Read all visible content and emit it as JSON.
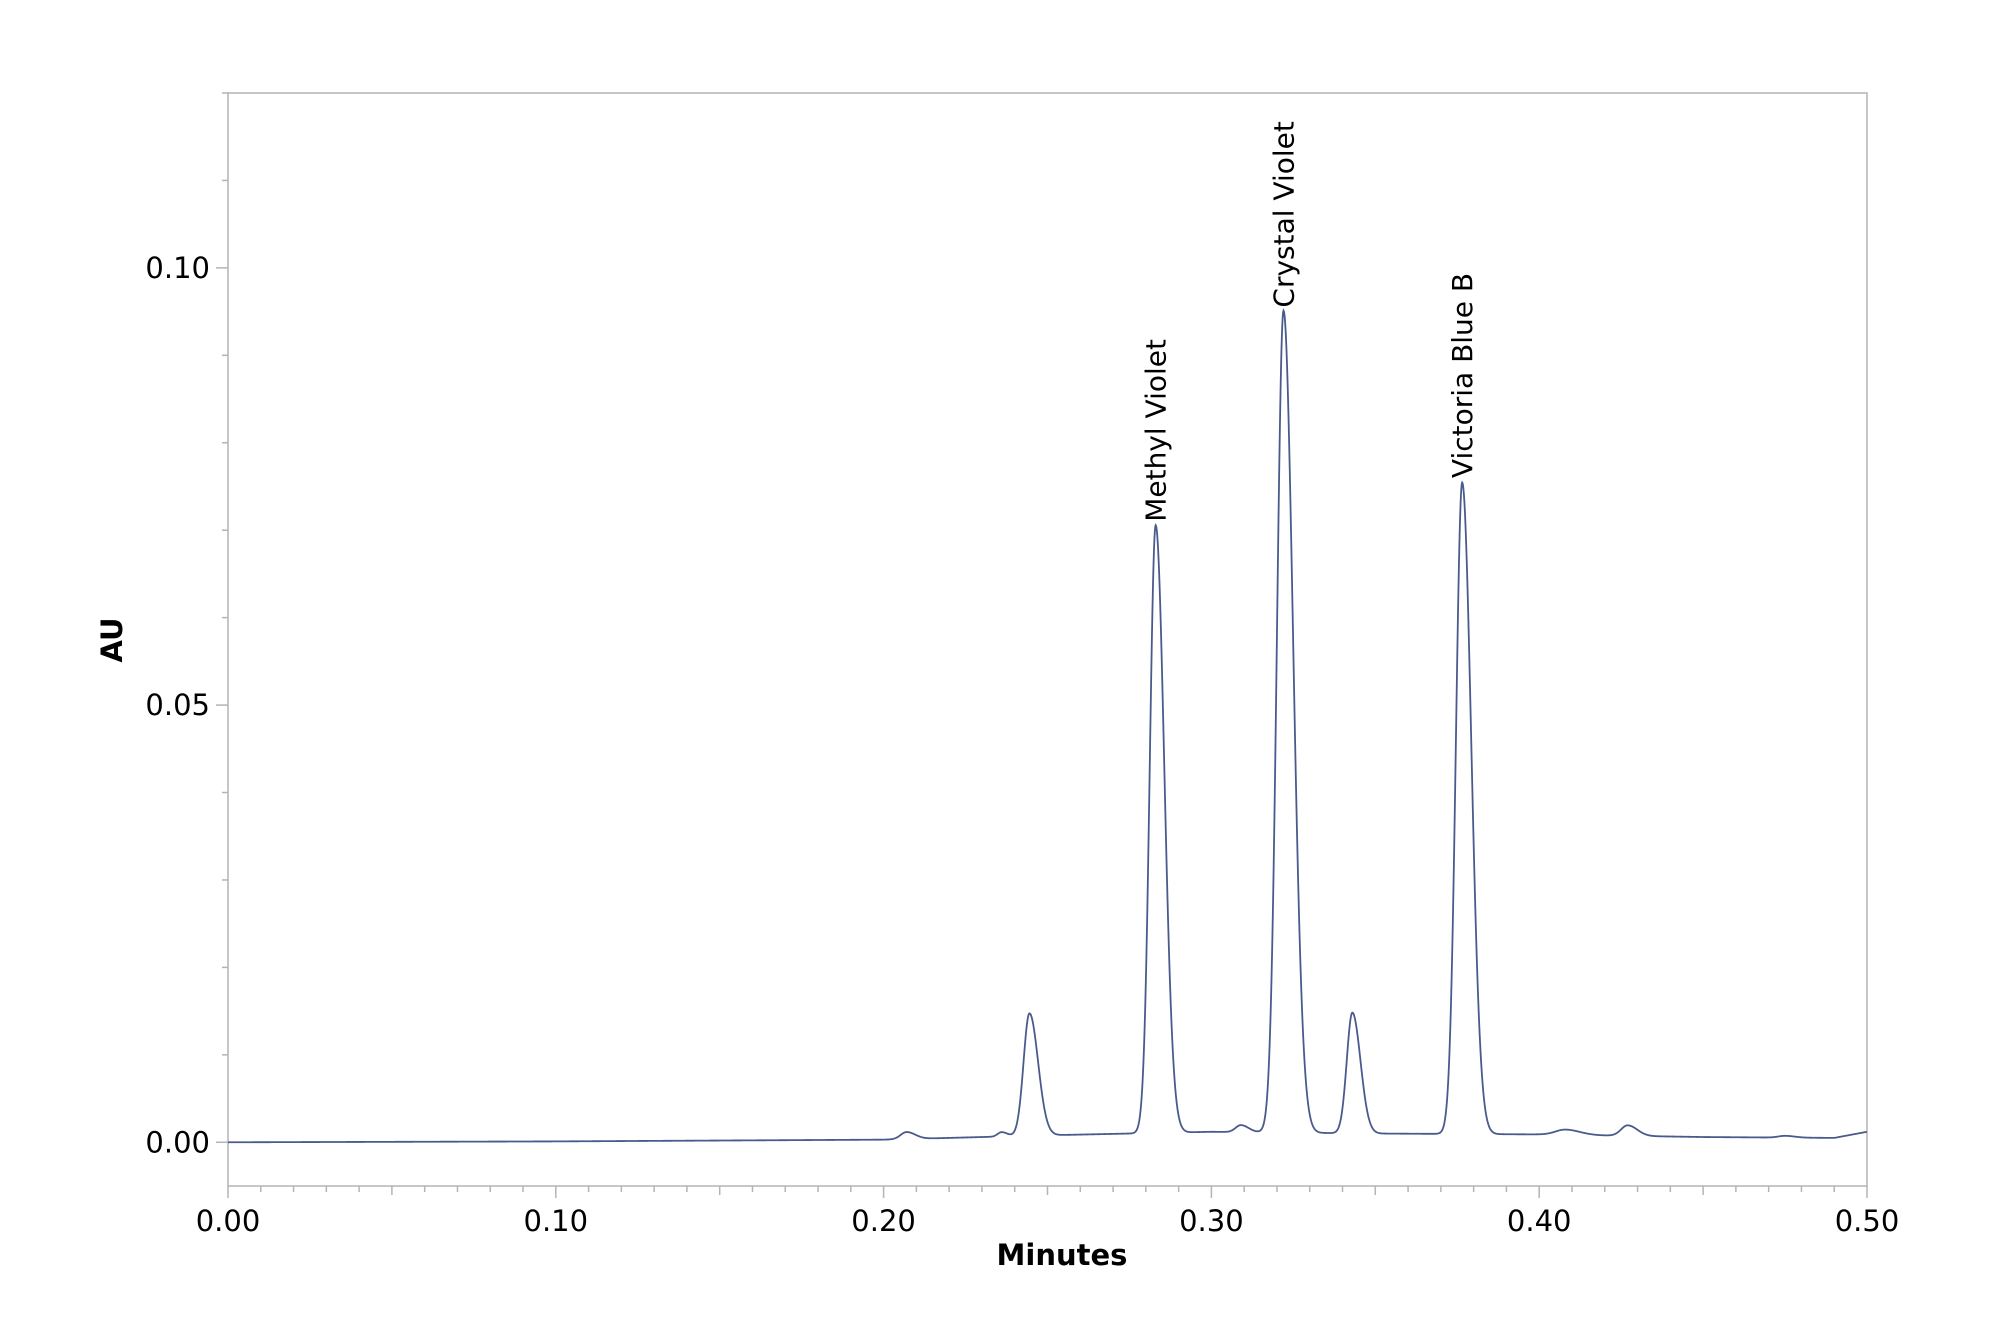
{
  "chart_data": {
    "type": "line",
    "title": "",
    "xlabel": "Minutes",
    "ylabel": "AU",
    "xlim": [
      0.0,
      0.5
    ],
    "ylim": [
      -0.005,
      0.12
    ],
    "x_ticks": [
      0.0,
      0.1,
      0.2,
      0.3,
      0.4,
      0.5
    ],
    "x_tick_labels": [
      "0.00",
      "0.10",
      "0.20",
      "0.30",
      "0.40",
      "0.50"
    ],
    "y_ticks": [
      0.0,
      0.05,
      0.1
    ],
    "y_tick_labels": [
      "0.00",
      "0.05",
      "0.10"
    ],
    "grid": false,
    "line_color": "#4a5a8c",
    "series": [
      {
        "baseline": [
          [
            0.0,
            0.0
          ],
          [
            0.1,
            0.0001
          ],
          [
            0.2,
            0.0003
          ],
          [
            0.25,
            0.0008
          ],
          [
            0.3,
            0.0012
          ],
          [
            0.35,
            0.001
          ],
          [
            0.4,
            0.0009
          ],
          [
            0.45,
            0.0006
          ],
          [
            0.49,
            0.0005
          ],
          [
            0.5,
            0.0012
          ]
        ],
        "peaks": [
          {
            "x": 0.207,
            "height": 0.0008,
            "width": 0.0018
          },
          {
            "x": 0.236,
            "height": 0.0005,
            "width": 0.0012
          },
          {
            "x": 0.2445,
            "height": 0.014,
            "width": 0.0018
          },
          {
            "x": 0.283,
            "height": 0.0695,
            "width": 0.0018
          },
          {
            "x": 0.309,
            "height": 0.0008,
            "width": 0.0016
          },
          {
            "x": 0.322,
            "height": 0.094,
            "width": 0.002
          },
          {
            "x": 0.343,
            "height": 0.0138,
            "width": 0.0017
          },
          {
            "x": 0.3765,
            "height": 0.0745,
            "width": 0.0019
          },
          {
            "x": 0.408,
            "height": 0.0006,
            "width": 0.003
          },
          {
            "x": 0.427,
            "height": 0.0012,
            "width": 0.002
          },
          {
            "x": 0.475,
            "height": 0.0002,
            "width": 0.002
          }
        ]
      }
    ],
    "annotations": [
      {
        "text": "Methyl Violet",
        "x": 0.283,
        "y": 0.0705
      },
      {
        "text": "Crystal Violet",
        "x": 0.322,
        "y": 0.095
      },
      {
        "text": "Victoria Blue B",
        "x": 0.3765,
        "y": 0.0755
      }
    ]
  }
}
